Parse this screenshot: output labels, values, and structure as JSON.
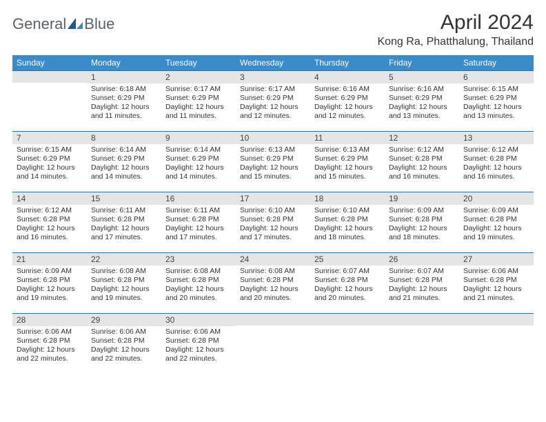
{
  "logo": {
    "text1": "General",
    "text2": "Blue"
  },
  "title": "April 2024",
  "location": "Kong Ra, Phatthalung, Thailand",
  "colors": {
    "header_bg": "#3b8bc9",
    "header_text": "#ffffff",
    "daynum_bg": "#e5e5e5",
    "row_border": "#2a6ea8",
    "body_text": "#333333",
    "logo_text": "#5a6268",
    "logo_accent": "#1e5a99"
  },
  "day_headers": [
    "Sunday",
    "Monday",
    "Tuesday",
    "Wednesday",
    "Thursday",
    "Friday",
    "Saturday"
  ],
  "weeks": [
    {
      "days": [
        {
          "num": "",
          "sunrise": "",
          "sunset": "",
          "daylight": ""
        },
        {
          "num": "1",
          "sunrise": "Sunrise: 6:18 AM",
          "sunset": "Sunset: 6:29 PM",
          "daylight": "Daylight: 12 hours and 11 minutes."
        },
        {
          "num": "2",
          "sunrise": "Sunrise: 6:17 AM",
          "sunset": "Sunset: 6:29 PM",
          "daylight": "Daylight: 12 hours and 11 minutes."
        },
        {
          "num": "3",
          "sunrise": "Sunrise: 6:17 AM",
          "sunset": "Sunset: 6:29 PM",
          "daylight": "Daylight: 12 hours and 12 minutes."
        },
        {
          "num": "4",
          "sunrise": "Sunrise: 6:16 AM",
          "sunset": "Sunset: 6:29 PM",
          "daylight": "Daylight: 12 hours and 12 minutes."
        },
        {
          "num": "5",
          "sunrise": "Sunrise: 6:16 AM",
          "sunset": "Sunset: 6:29 PM",
          "daylight": "Daylight: 12 hours and 13 minutes."
        },
        {
          "num": "6",
          "sunrise": "Sunrise: 6:15 AM",
          "sunset": "Sunset: 6:29 PM",
          "daylight": "Daylight: 12 hours and 13 minutes."
        }
      ]
    },
    {
      "days": [
        {
          "num": "7",
          "sunrise": "Sunrise: 6:15 AM",
          "sunset": "Sunset: 6:29 PM",
          "daylight": "Daylight: 12 hours and 14 minutes."
        },
        {
          "num": "8",
          "sunrise": "Sunrise: 6:14 AM",
          "sunset": "Sunset: 6:29 PM",
          "daylight": "Daylight: 12 hours and 14 minutes."
        },
        {
          "num": "9",
          "sunrise": "Sunrise: 6:14 AM",
          "sunset": "Sunset: 6:29 PM",
          "daylight": "Daylight: 12 hours and 14 minutes."
        },
        {
          "num": "10",
          "sunrise": "Sunrise: 6:13 AM",
          "sunset": "Sunset: 6:29 PM",
          "daylight": "Daylight: 12 hours and 15 minutes."
        },
        {
          "num": "11",
          "sunrise": "Sunrise: 6:13 AM",
          "sunset": "Sunset: 6:29 PM",
          "daylight": "Daylight: 12 hours and 15 minutes."
        },
        {
          "num": "12",
          "sunrise": "Sunrise: 6:12 AM",
          "sunset": "Sunset: 6:28 PM",
          "daylight": "Daylight: 12 hours and 16 minutes."
        },
        {
          "num": "13",
          "sunrise": "Sunrise: 6:12 AM",
          "sunset": "Sunset: 6:28 PM",
          "daylight": "Daylight: 12 hours and 16 minutes."
        }
      ]
    },
    {
      "days": [
        {
          "num": "14",
          "sunrise": "Sunrise: 6:12 AM",
          "sunset": "Sunset: 6:28 PM",
          "daylight": "Daylight: 12 hours and 16 minutes."
        },
        {
          "num": "15",
          "sunrise": "Sunrise: 6:11 AM",
          "sunset": "Sunset: 6:28 PM",
          "daylight": "Daylight: 12 hours and 17 minutes."
        },
        {
          "num": "16",
          "sunrise": "Sunrise: 6:11 AM",
          "sunset": "Sunset: 6:28 PM",
          "daylight": "Daylight: 12 hours and 17 minutes."
        },
        {
          "num": "17",
          "sunrise": "Sunrise: 6:10 AM",
          "sunset": "Sunset: 6:28 PM",
          "daylight": "Daylight: 12 hours and 17 minutes."
        },
        {
          "num": "18",
          "sunrise": "Sunrise: 6:10 AM",
          "sunset": "Sunset: 6:28 PM",
          "daylight": "Daylight: 12 hours and 18 minutes."
        },
        {
          "num": "19",
          "sunrise": "Sunrise: 6:09 AM",
          "sunset": "Sunset: 6:28 PM",
          "daylight": "Daylight: 12 hours and 18 minutes."
        },
        {
          "num": "20",
          "sunrise": "Sunrise: 6:09 AM",
          "sunset": "Sunset: 6:28 PM",
          "daylight": "Daylight: 12 hours and 19 minutes."
        }
      ]
    },
    {
      "days": [
        {
          "num": "21",
          "sunrise": "Sunrise: 6:09 AM",
          "sunset": "Sunset: 6:28 PM",
          "daylight": "Daylight: 12 hours and 19 minutes."
        },
        {
          "num": "22",
          "sunrise": "Sunrise: 6:08 AM",
          "sunset": "Sunset: 6:28 PM",
          "daylight": "Daylight: 12 hours and 19 minutes."
        },
        {
          "num": "23",
          "sunrise": "Sunrise: 6:08 AM",
          "sunset": "Sunset: 6:28 PM",
          "daylight": "Daylight: 12 hours and 20 minutes."
        },
        {
          "num": "24",
          "sunrise": "Sunrise: 6:08 AM",
          "sunset": "Sunset: 6:28 PM",
          "daylight": "Daylight: 12 hours and 20 minutes."
        },
        {
          "num": "25",
          "sunrise": "Sunrise: 6:07 AM",
          "sunset": "Sunset: 6:28 PM",
          "daylight": "Daylight: 12 hours and 20 minutes."
        },
        {
          "num": "26",
          "sunrise": "Sunrise: 6:07 AM",
          "sunset": "Sunset: 6:28 PM",
          "daylight": "Daylight: 12 hours and 21 minutes."
        },
        {
          "num": "27",
          "sunrise": "Sunrise: 6:06 AM",
          "sunset": "Sunset: 6:28 PM",
          "daylight": "Daylight: 12 hours and 21 minutes."
        }
      ]
    },
    {
      "days": [
        {
          "num": "28",
          "sunrise": "Sunrise: 6:06 AM",
          "sunset": "Sunset: 6:28 PM",
          "daylight": "Daylight: 12 hours and 22 minutes."
        },
        {
          "num": "29",
          "sunrise": "Sunrise: 6:06 AM",
          "sunset": "Sunset: 6:28 PM",
          "daylight": "Daylight: 12 hours and 22 minutes."
        },
        {
          "num": "30",
          "sunrise": "Sunrise: 6:06 AM",
          "sunset": "Sunset: 6:28 PM",
          "daylight": "Daylight: 12 hours and 22 minutes."
        },
        {
          "num": "",
          "sunrise": "",
          "sunset": "",
          "daylight": ""
        },
        {
          "num": "",
          "sunrise": "",
          "sunset": "",
          "daylight": ""
        },
        {
          "num": "",
          "sunrise": "",
          "sunset": "",
          "daylight": ""
        },
        {
          "num": "",
          "sunrise": "",
          "sunset": "",
          "daylight": ""
        }
      ]
    }
  ]
}
